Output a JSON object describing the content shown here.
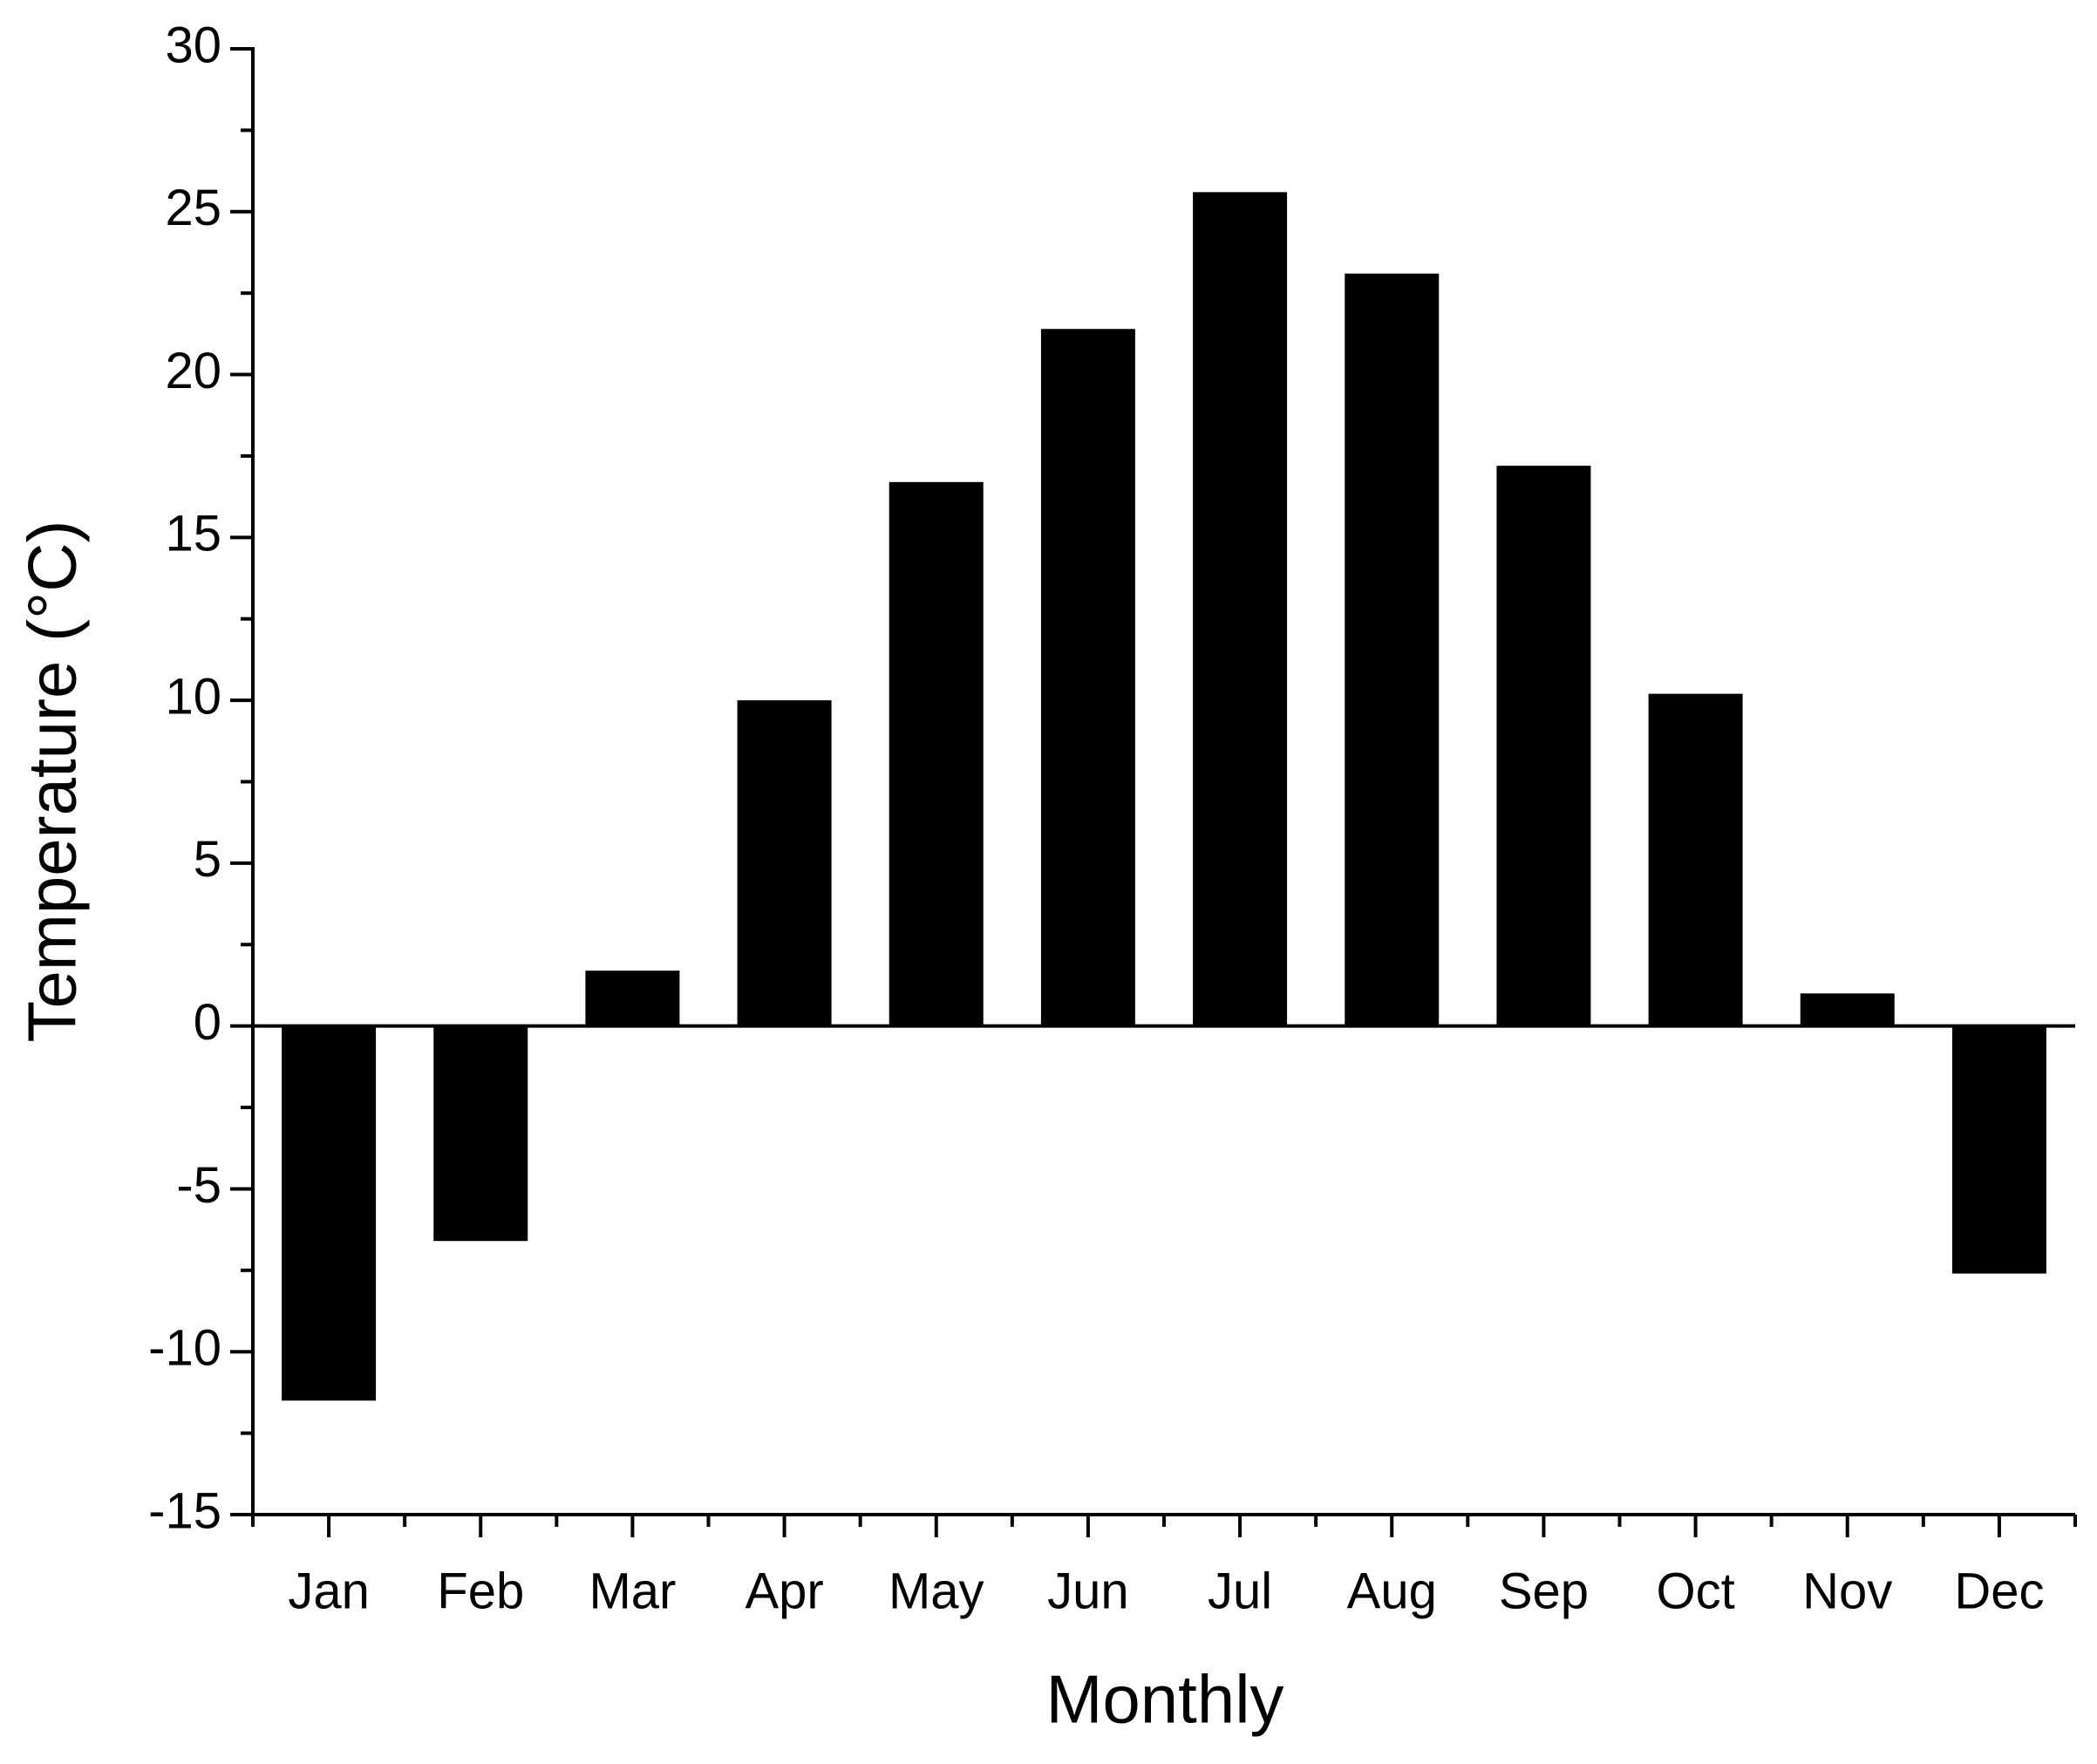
{
  "chart_data": {
    "type": "bar",
    "x_label": "Monthly",
    "y_label": "Temperature (°C)",
    "categories": [
      "Jan",
      "Feb",
      "Mar",
      "Apr",
      "May",
      "Jun",
      "Jul",
      "Aug",
      "Sep",
      "Oct",
      "Nov",
      "Dec"
    ],
    "values": [
      -11.5,
      -6.6,
      1.7,
      10.0,
      16.7,
      21.4,
      25.6,
      23.1,
      17.2,
      10.2,
      1.0,
      -7.6
    ],
    "color": "#000000",
    "ylim": [
      -15,
      30
    ],
    "yticks": [
      -15,
      -10,
      -5,
      0,
      5,
      10,
      15,
      20,
      25,
      30
    ],
    "grid": false
  }
}
